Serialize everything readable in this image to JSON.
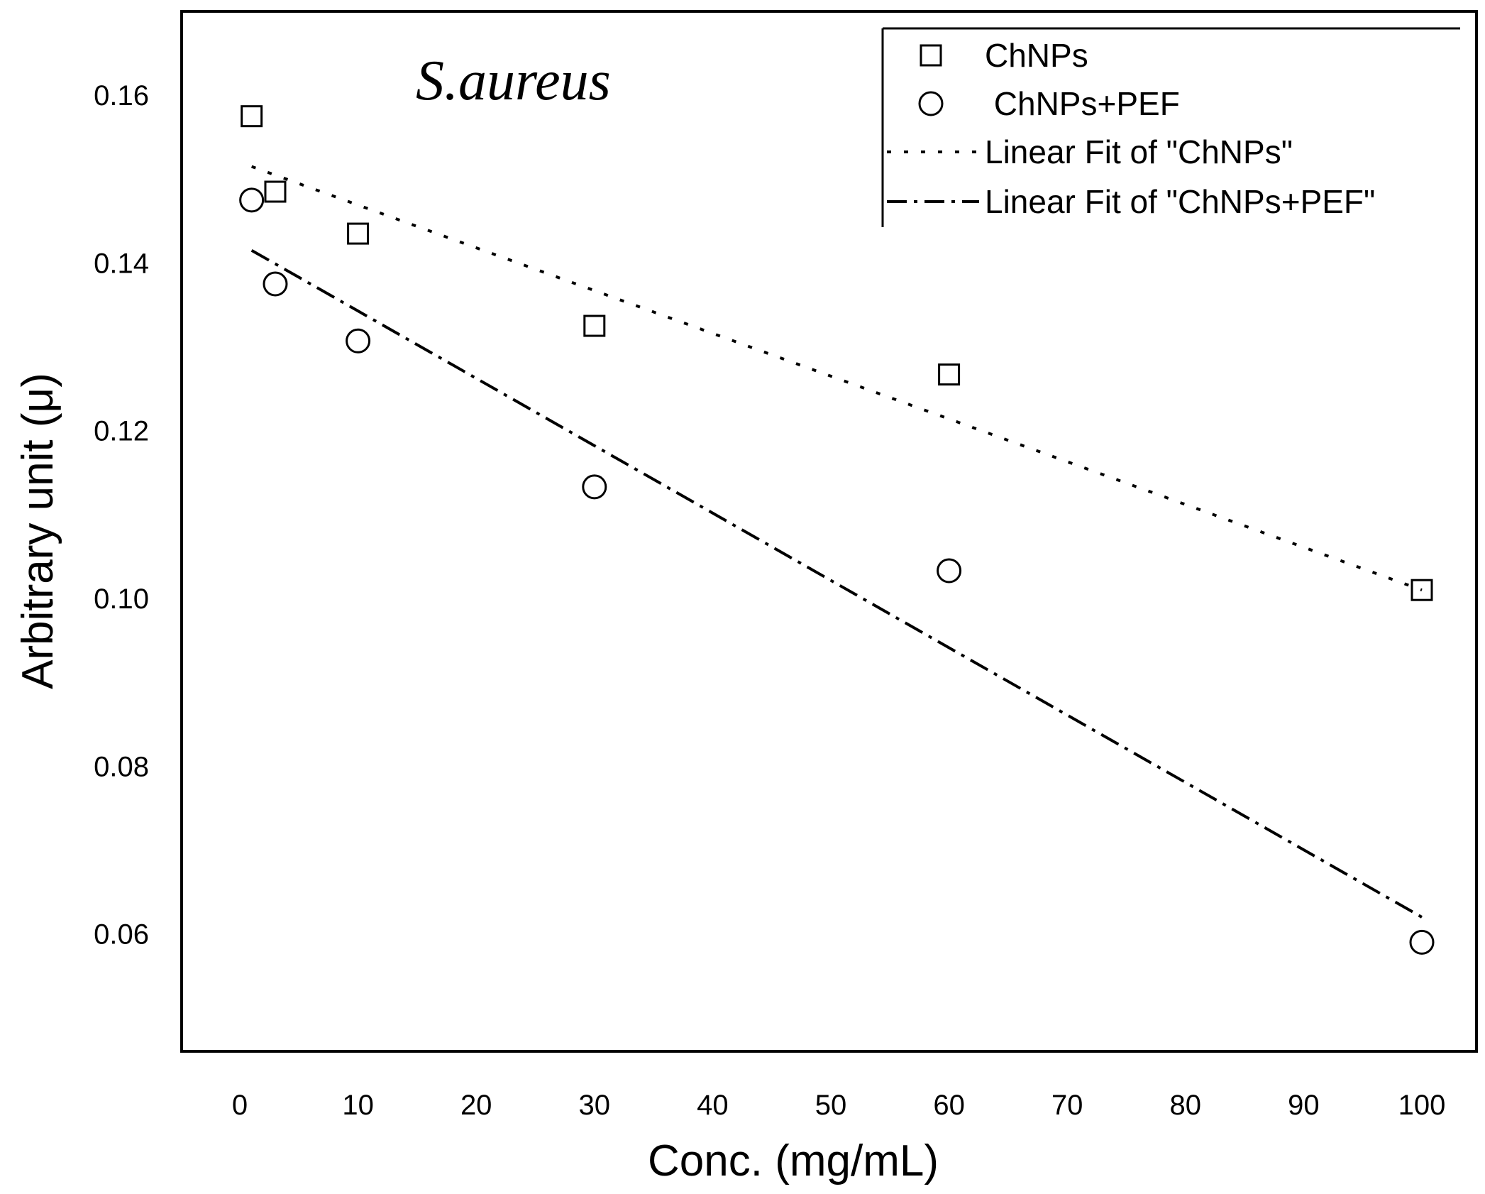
{
  "chart_data": {
    "type": "scatter",
    "title": "",
    "annotation": "S.aureus",
    "xlabel": "Conc. (mg/mL)",
    "ylabel": "Arbitrary unit (μ)",
    "xlim": [
      -5,
      105
    ],
    "ylim": [
      0.046,
      0.17
    ],
    "xticks": [
      0,
      10,
      20,
      30,
      40,
      50,
      60,
      70,
      80,
      90,
      100
    ],
    "yticks": [
      0.06,
      0.08,
      0.1,
      0.12,
      0.14,
      0.16
    ],
    "ytick_labels": [
      "0.06",
      "0.08",
      "0.10",
      "0.12",
      "0.14",
      "0.16"
    ],
    "grid": false,
    "legend_position": "top-right",
    "series": [
      {
        "name": "ChNPs",
        "marker": "square",
        "x": [
          1,
          3,
          10,
          30,
          60,
          100
        ],
        "y": [
          0.1575,
          0.1485,
          0.1435,
          0.1325,
          0.1267,
          0.101
        ]
      },
      {
        "name": " ChNPs+PEF",
        "marker": "circle",
        "x": [
          1,
          3,
          10,
          30,
          60,
          100
        ],
        "y": [
          0.1475,
          0.1375,
          0.1307,
          0.1133,
          0.1033,
          0.059
        ]
      }
    ],
    "fits": [
      {
        "name": "Linear Fit of \"ChNPs\"",
        "style": "dotted",
        "x_range": [
          1,
          100
        ],
        "y_start": 0.1515,
        "y_end": 0.101
      },
      {
        "name": "Linear Fit of \"ChNPs+PEF\"",
        "style": "dash-dot",
        "x_range": [
          1,
          100
        ],
        "y_start": 0.1415,
        "y_end": 0.062
      }
    ]
  }
}
